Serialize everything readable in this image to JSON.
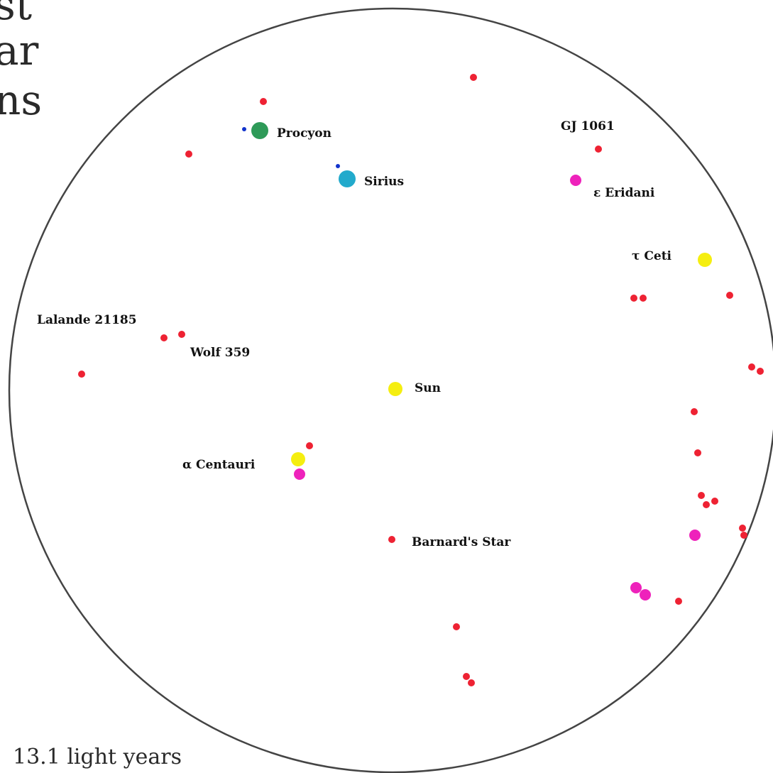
{
  "title_lines": [
    "st",
    "ar",
    "ns"
  ],
  "scale_label": "13.1 light years",
  "colors": {
    "red_dwarf": "#ee2233",
    "magenta": "#ee22bb",
    "yellow": "#f5ee10",
    "green": "#2e9a58",
    "cyan": "#22aacc",
    "blue": "#1133cc",
    "boundary": "#444444"
  },
  "labels": [
    {
      "id": "procyon",
      "text": "Procyon"
    },
    {
      "id": "sirius",
      "text": "Sirius"
    },
    {
      "id": "gj1061",
      "text": "GJ 1061"
    },
    {
      "id": "eps-eridani",
      "text": "ε Eridani"
    },
    {
      "id": "tau-ceti",
      "text": "τ Ceti"
    },
    {
      "id": "lalande",
      "text": "Lalande 21185"
    },
    {
      "id": "wolf359",
      "text": "Wolf 359"
    },
    {
      "id": "sun",
      "text": "Sun"
    },
    {
      "id": "alpha-centauri",
      "text": "α Centauri"
    },
    {
      "id": "barnard",
      "text": "Barnard's Star"
    }
  ]
}
